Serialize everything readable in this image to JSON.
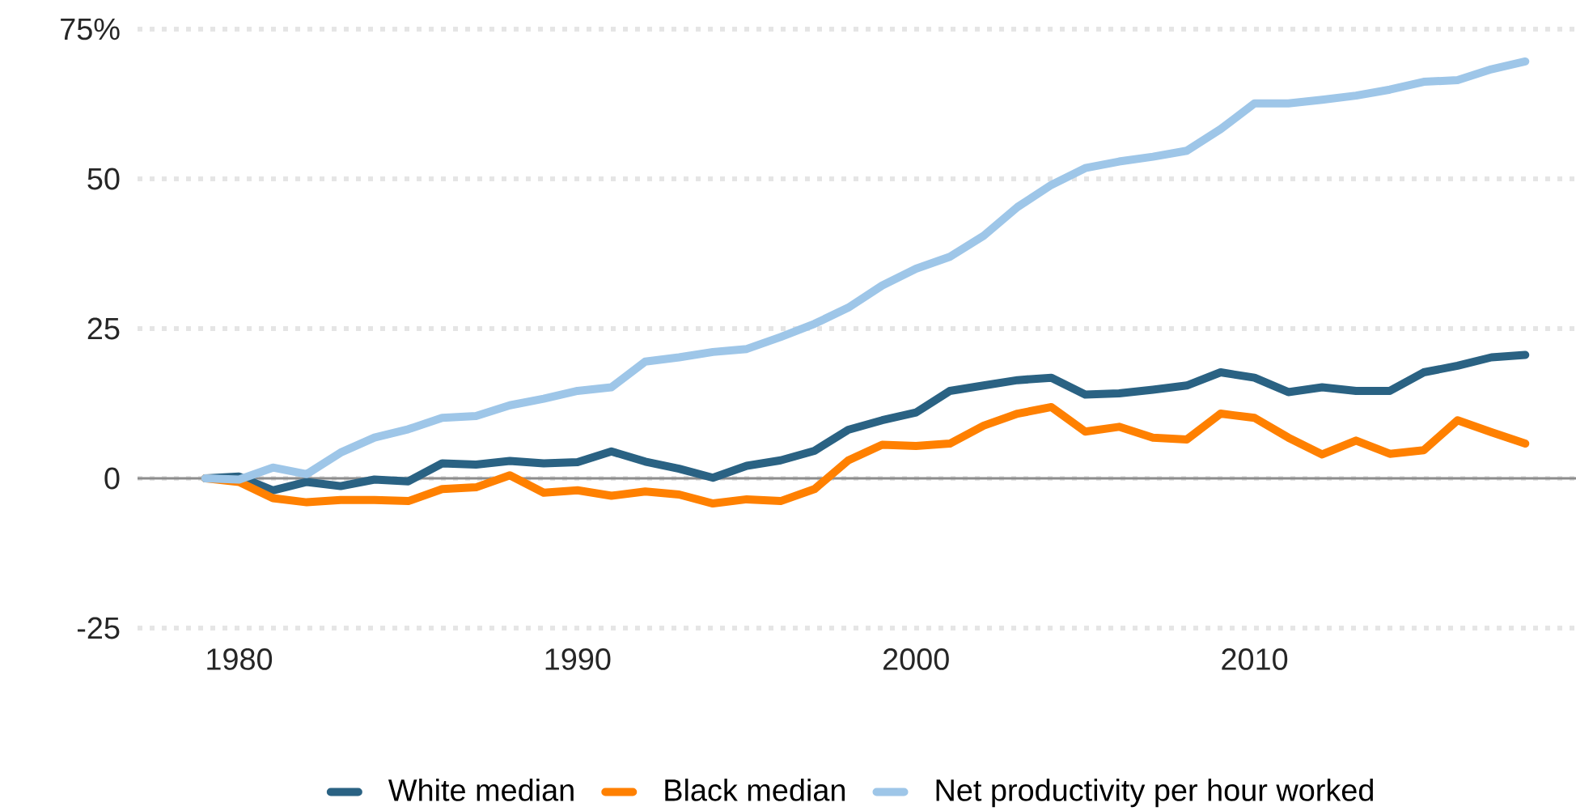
{
  "chart_data": {
    "type": "line",
    "x": [
      1979,
      1980,
      1981,
      1982,
      1983,
      1984,
      1985,
      1986,
      1987,
      1988,
      1989,
      1990,
      1991,
      1992,
      1993,
      1994,
      1995,
      1996,
      1997,
      1998,
      1999,
      2000,
      2001,
      2002,
      2003,
      2004,
      2005,
      2006,
      2007,
      2008,
      2009,
      2010,
      2011,
      2012,
      2013,
      2014,
      2015,
      2016,
      2017,
      2018
    ],
    "series": [
      {
        "name": "White median",
        "color": "#2a6283",
        "values": [
          0,
          0.3,
          -2.0,
          -0.6,
          -1.3,
          -0.2,
          -0.5,
          2.5,
          2.3,
          2.9,
          2.5,
          2.7,
          4.5,
          2.8,
          1.6,
          0.1,
          2.1,
          3.0,
          4.6,
          8.1,
          9.7,
          11.0,
          14.6,
          15.5,
          16.4,
          16.8,
          14.0,
          14.2,
          14.8,
          15.5,
          17.7,
          16.8,
          14.4,
          15.2,
          14.6,
          14.6,
          17.7,
          18.8,
          20.2,
          20.6
        ]
      },
      {
        "name": "Black median",
        "color": "#ff8000",
        "values": [
          0,
          -0.6,
          -3.3,
          -4.0,
          -3.6,
          -3.6,
          -3.8,
          -1.8,
          -1.5,
          0.5,
          -2.4,
          -2.0,
          -2.9,
          -2.2,
          -2.7,
          -4.2,
          -3.5,
          -3.8,
          -1.8,
          3.0,
          5.6,
          5.4,
          5.8,
          8.8,
          10.8,
          11.9,
          7.8,
          8.6,
          6.8,
          6.5,
          10.8,
          10.1,
          6.8,
          4.0,
          6.3,
          4.1,
          4.7,
          9.7,
          7.7,
          5.8
        ]
      },
      {
        "name": "Net productivity per hour worked",
        "color": "#9ec6e8",
        "values": [
          0,
          -0.2,
          1.8,
          0.7,
          4.3,
          6.8,
          8.2,
          10.1,
          10.4,
          12.2,
          13.3,
          14.6,
          15.2,
          19.5,
          20.2,
          21.1,
          21.6,
          23.6,
          25.8,
          28.5,
          32.2,
          35.0,
          37.0,
          40.5,
          45.3,
          49.0,
          51.8,
          52.9,
          53.7,
          54.7,
          58.3,
          62.6,
          62.6,
          63.2,
          63.9,
          64.9,
          66.2,
          66.5,
          68.3,
          69.6
        ]
      }
    ],
    "xlim": [
      1977,
      2019.5
    ],
    "xticks": [
      1980,
      1990,
      2000,
      2010
    ],
    "ylim": [
      -25,
      75
    ],
    "yticks": [
      {
        "value": 75,
        "label": "75%"
      },
      50,
      25,
      0,
      -25
    ],
    "ref_lines": [
      {
        "axis": "y",
        "value": 0,
        "color": "#8c8c8c"
      }
    ],
    "grid": "y",
    "legend": "bottom",
    "line_style": "solid",
    "marker": "none"
  }
}
